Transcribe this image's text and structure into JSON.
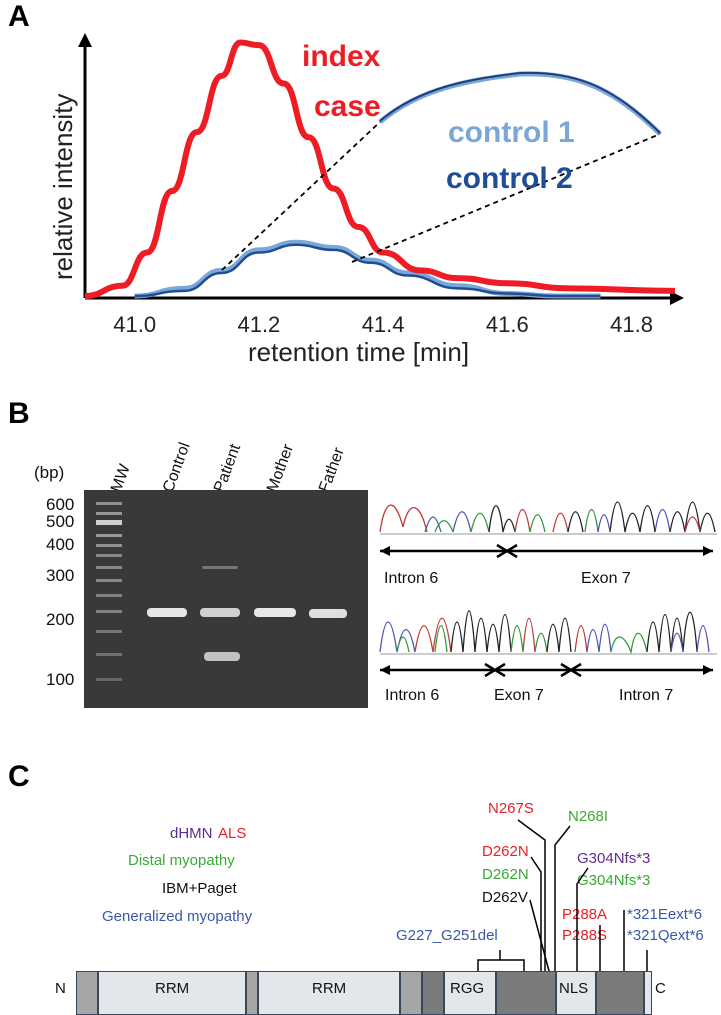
{
  "panel_a": {
    "letter": "A",
    "chart_data": {
      "type": "line",
      "xlabel": "retention time [min]",
      "ylabel": "relative intensity",
      "xlim": [
        40.92,
        41.87
      ],
      "ylim": [
        0,
        1
      ],
      "x_ticks": [
        "41.0",
        "41.2",
        "41.4",
        "41.6",
        "41.8"
      ],
      "x_tick_values": [
        41.0,
        41.2,
        41.4,
        41.6,
        41.8
      ],
      "series": [
        {
          "name": "index case",
          "color": "#ee1c25",
          "x": [
            40.92,
            40.98,
            41.02,
            41.06,
            41.1,
            41.14,
            41.17,
            41.2,
            41.24,
            41.28,
            41.32,
            41.36,
            41.4,
            41.46,
            41.52,
            41.6,
            41.7,
            41.87
          ],
          "y": [
            0.0,
            0.04,
            0.17,
            0.41,
            0.64,
            0.86,
            0.99,
            0.98,
            0.83,
            0.62,
            0.42,
            0.27,
            0.17,
            0.1,
            0.07,
            0.05,
            0.03,
            0.02
          ]
        },
        {
          "name": "control 1",
          "color": "#79a7d8",
          "x": [
            41.0,
            41.08,
            41.14,
            41.2,
            41.26,
            41.32,
            41.38,
            41.44,
            41.52,
            41.6,
            41.68,
            41.75
          ],
          "y": [
            0.0,
            0.03,
            0.1,
            0.18,
            0.21,
            0.19,
            0.14,
            0.09,
            0.04,
            0.01,
            0.0,
            0.0
          ]
        },
        {
          "name": "control 2",
          "color": "#1f4e96",
          "x": [
            41.0,
            41.08,
            41.14,
            41.2,
            41.26,
            41.32,
            41.38,
            41.44,
            41.52,
            41.6,
            41.68,
            41.75
          ],
          "y": [
            0.0,
            0.02,
            0.09,
            0.17,
            0.2,
            0.18,
            0.13,
            0.08,
            0.03,
            0.01,
            0.0,
            0.0
          ]
        }
      ],
      "legend": [
        "index case",
        "control 1",
        "control 2"
      ]
    },
    "label_index_line1": "index",
    "label_index_line2": "case",
    "label_control1": "control 1",
    "label_control2": "control 2"
  },
  "panel_b": {
    "letter": "B",
    "bp_unit": "(bp)",
    "lanes": [
      "MW",
      "Control",
      "Patient",
      "Mother",
      "Father"
    ],
    "bp_marks": [
      "600",
      "500",
      "400",
      "300",
      "200",
      "100"
    ],
    "seq_top_labels": [
      "Intron 6",
      "Exon 7"
    ],
    "seq_bottom_labels": [
      "Intron 6",
      "Exon 7",
      "Intron 7"
    ]
  },
  "panel_c": {
    "letter": "C",
    "legend": {
      "dhmn": "dHMN",
      "als": "ALS",
      "distal": "Distal myopathy",
      "ibm": "IBM+Paget",
      "generalized": "Generalized myopathy"
    },
    "colors": {
      "dhmn": "#5c2d91",
      "als": "#e8202a",
      "distal": "#3aa935",
      "ibm": "#111111",
      "generalized": "#3b57a8"
    },
    "mutations": {
      "n267s": "N267S",
      "n268i": "N268I",
      "d262n_als": "D262N",
      "d262n_distal": "D262N",
      "d262v": "D262V",
      "g304nfs_dhmn": "G304Nfs*3",
      "g304nfs_distal": "G304Nfs*3",
      "p288a": "P288A",
      "p288s": "P288S",
      "ext321e": "*321Eext*6",
      "ext321q": "*321Qext*6",
      "g227del": "G227_G251del"
    },
    "terminus_n": "N",
    "terminus_c": "C",
    "domains": [
      "RRM",
      "RRM",
      "RGG",
      "NLS"
    ]
  }
}
